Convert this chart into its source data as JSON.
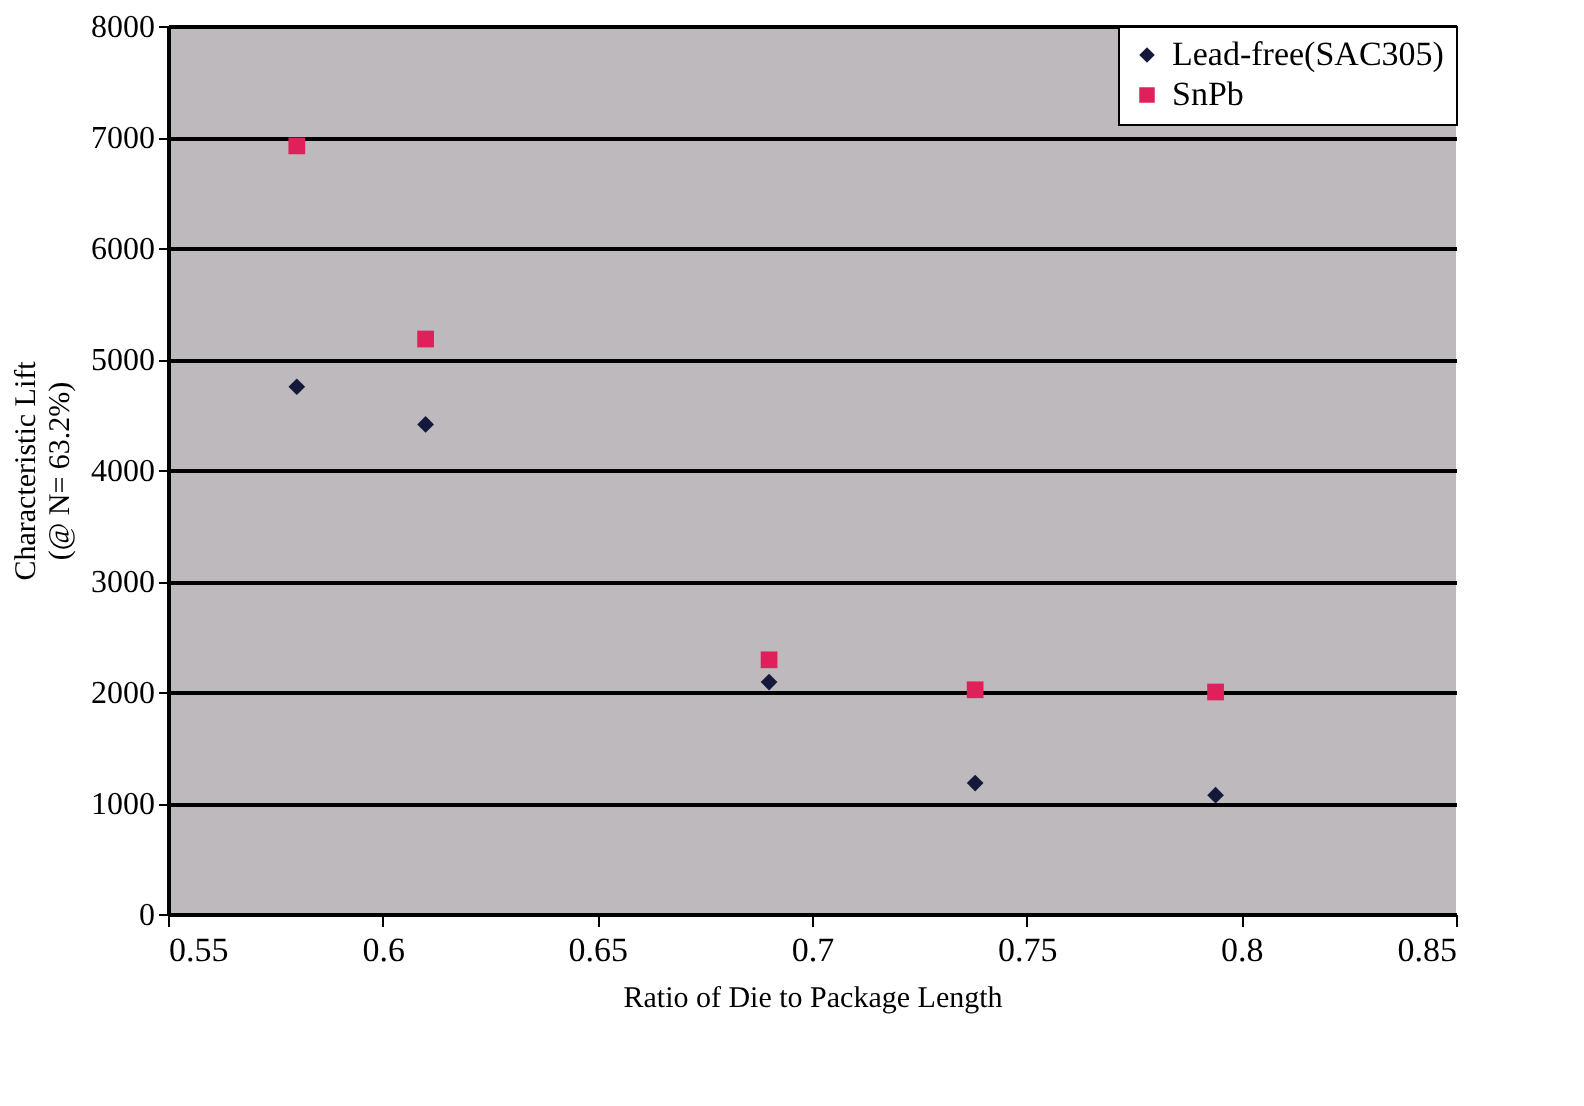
{
  "chart_data": {
    "type": "scatter",
    "xlabel": "Ratio of Die to Package Length",
    "ylabel": "Characteristic Lift\n(@ N= 63.2%)",
    "x": [
      0.58,
      0.61,
      0.69,
      0.738,
      0.794
    ],
    "series": [
      {
        "name": "Lead-free(SAC305)",
        "color": "#14193c",
        "marker": "diamond",
        "values": [
          4750,
          4410,
          2090,
          1180,
          1070
        ]
      },
      {
        "name": "SnPb",
        "color": "#e0205a",
        "marker": "square",
        "values": [
          6920,
          5180,
          2290,
          2020,
          2000
        ]
      }
    ],
    "xlim": [
      0.55,
      0.85
    ],
    "xticks": [
      0.55,
      0.6,
      0.65,
      0.7,
      0.75,
      0.8,
      0.85
    ],
    "ylim": [
      0,
      8000
    ],
    "yticks": [
      0,
      1000,
      2000,
      3000,
      4000,
      5000,
      6000,
      7000,
      8000
    ],
    "grid": "y",
    "legend": "top right"
  }
}
